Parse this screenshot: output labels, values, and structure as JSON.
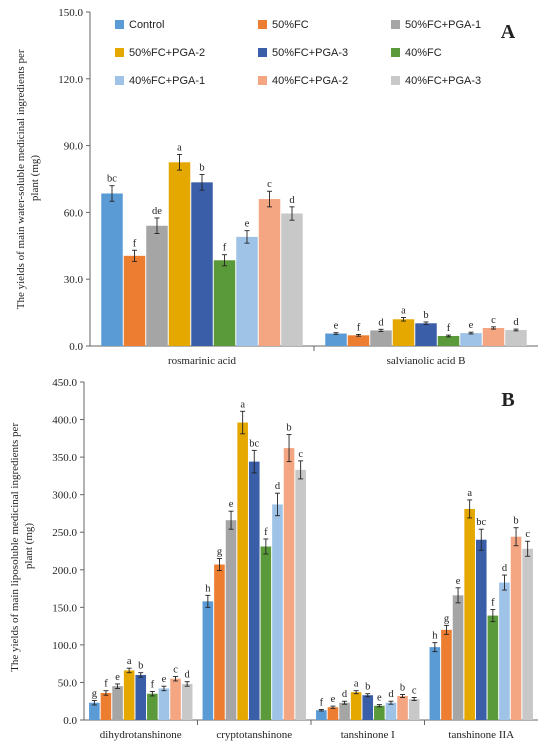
{
  "chart_data": [
    {
      "type": "bar",
      "panel_letter": "A",
      "ylabel_line1": "The yields of main water-soluble medicinal ingredients per",
      "ylabel_line2": "plant (mg)",
      "ylim": [
        0,
        150
      ],
      "yticks": [
        0,
        30,
        60,
        90,
        120,
        150
      ],
      "ytick_labels": [
        "0.0",
        "30.0",
        "60.0",
        "90.0",
        "120.0",
        "150.0"
      ],
      "categories": [
        "rosmarinic acid",
        "salvianolic acid B"
      ],
      "legend": "top",
      "grid": false,
      "series": [
        {
          "name": "Control",
          "color": "#5b9bd5",
          "values": [
            68.5,
            5.6
          ],
          "errors": [
            3.5,
            0.4
          ],
          "letters": [
            "bc",
            "e"
          ]
        },
        {
          "name": "50%FC",
          "color": "#ed7d31",
          "values": [
            40.5,
            4.8
          ],
          "errors": [
            2.5,
            0.4
          ],
          "letters": [
            "f",
            "f"
          ]
        },
        {
          "name": "50%FC+PGA-1",
          "color": "#a5a5a5",
          "values": [
            54.0,
            7.0
          ],
          "errors": [
            3.5,
            0.5
          ],
          "letters": [
            "de",
            "d"
          ]
        },
        {
          "name": "50%FC+PGA-2",
          "color": "#e5a800",
          "values": [
            82.5,
            12.0
          ],
          "errors": [
            3.5,
            0.8
          ],
          "letters": [
            "a",
            "a"
          ]
        },
        {
          "name": "50%FC+PGA-3",
          "color": "#3a5fa8",
          "values": [
            73.5,
            10.2
          ],
          "errors": [
            3.5,
            0.6
          ],
          "letters": [
            "b",
            "b"
          ]
        },
        {
          "name": "40%FC",
          "color": "#5b9a3a",
          "values": [
            38.5,
            4.5
          ],
          "errors": [
            2.5,
            0.4
          ],
          "letters": [
            "f",
            "f"
          ]
        },
        {
          "name": "40%FC+PGA-1",
          "color": "#9fc3e7",
          "values": [
            49.0,
            5.8
          ],
          "errors": [
            2.8,
            0.4
          ],
          "letters": [
            "e",
            "e"
          ]
        },
        {
          "name": "40%FC+PGA-2",
          "color": "#f4a582",
          "values": [
            66.0,
            8.1
          ],
          "errors": [
            3.5,
            0.5
          ],
          "letters": [
            "c",
            "c"
          ]
        },
        {
          "name": "40%FC+PGA-3",
          "color": "#c8c8c8",
          "values": [
            59.5,
            7.2
          ],
          "errors": [
            3.0,
            0.4
          ],
          "letters": [
            "d",
            "d"
          ]
        }
      ]
    },
    {
      "type": "bar",
      "panel_letter": "B",
      "ylabel_line1": "The yields of main liposoluble medicinal ingredients per",
      "ylabel_line2": "plant (mg)",
      "ylim": [
        0,
        450
      ],
      "yticks": [
        0,
        50,
        100,
        150,
        200,
        250,
        300,
        350,
        400,
        450
      ],
      "ytick_labels": [
        "0.0",
        "50.0",
        "100.0",
        "150.0",
        "200.0",
        "250.0",
        "300.0",
        "350.0",
        "400.0",
        "450.0"
      ],
      "categories": [
        "dihydrotanshinone",
        "cryptotanshinone",
        "tanshinone I",
        "tanshinone IIA"
      ],
      "grid": false,
      "series": [
        {
          "name": "Control",
          "values": [
            23,
            158,
            13,
            97
          ],
          "errors": [
            3,
            8,
            1,
            6
          ],
          "letters": [
            "g",
            "h",
            "f",
            "h"
          ]
        },
        {
          "name": "50%FC",
          "values": [
            36,
            207,
            17,
            120
          ],
          "errors": [
            3,
            8,
            1.5,
            6
          ],
          "letters": [
            "f",
            "g",
            "e",
            "g"
          ]
        },
        {
          "name": "50%FC+PGA-1",
          "values": [
            45,
            266,
            23,
            166
          ],
          "errors": [
            3,
            12,
            2,
            10
          ],
          "letters": [
            "e",
            "e",
            "d",
            "e"
          ]
        },
        {
          "name": "50%FC+PGA-2",
          "values": [
            66,
            396,
            37,
            281
          ],
          "errors": [
            3,
            15,
            2,
            12
          ],
          "letters": [
            "a",
            "a",
            "a",
            "a"
          ]
        },
        {
          "name": "50%FC+PGA-3",
          "values": [
            60,
            344,
            33,
            240
          ],
          "errors": [
            3,
            15,
            2,
            14
          ],
          "letters": [
            "b",
            "bc",
            "b",
            "bc"
          ]
        },
        {
          "name": "40%FC",
          "values": [
            35,
            231,
            19,
            139
          ],
          "errors": [
            3,
            10,
            1.5,
            8
          ],
          "letters": [
            "f",
            "f",
            "e",
            "f"
          ]
        },
        {
          "name": "40%FC+PGA-1",
          "values": [
            42,
            287,
            23,
            183
          ],
          "errors": [
            3,
            15,
            2,
            10
          ],
          "letters": [
            "e",
            "d",
            "d",
            "d"
          ]
        },
        {
          "name": "40%FC+PGA-2",
          "values": [
            55,
            362,
            32,
            244
          ],
          "errors": [
            3,
            18,
            2,
            12
          ],
          "letters": [
            "c",
            "b",
            "b",
            "b"
          ]
        },
        {
          "name": "40%FC+PGA-3",
          "values": [
            48,
            333,
            28,
            228
          ],
          "errors": [
            3,
            12,
            2,
            10
          ],
          "letters": [
            "d",
            "c",
            "c",
            "c"
          ]
        }
      ]
    }
  ]
}
